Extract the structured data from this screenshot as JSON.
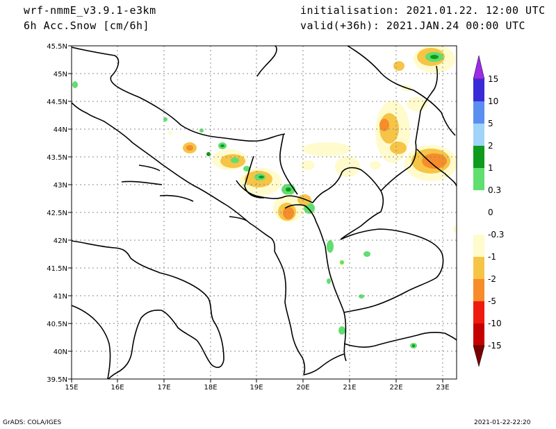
{
  "header": {
    "model": "wrf-nmmE_v3.9.1-e3km",
    "variable": "6h Acc.Snow [cm/6h]",
    "init": "initialisation: 2021.01.22.  12:00 UTC",
    "valid": "valid(+36h): 2021.JAN.24 00:00 UTC"
  },
  "axes": {
    "lat_labels": [
      "45.5N",
      "45N",
      "44.5N",
      "44N",
      "43.5N",
      "43N",
      "42.5N",
      "42N",
      "41.5N",
      "41N",
      "40.5N",
      "40N",
      "39.5N"
    ],
    "lon_labels": [
      "15E",
      "16E",
      "17E",
      "18E",
      "19E",
      "20E",
      "21E",
      "22E",
      "23E"
    ]
  },
  "colorbar": {
    "labels": [
      "15",
      "10",
      "5",
      "2",
      "1",
      "0.3",
      "0",
      "-0.3",
      "-1",
      "-2",
      "-5",
      "-10",
      "-15"
    ],
    "colors": [
      "#3a2bd6",
      "#5a8ef0",
      "#a0d4f8",
      "#0e9a1c",
      "#60de6e",
      "#ffffff",
      "#ffffff",
      "#fffbcc",
      "#f6c446",
      "#f68c2a",
      "#ee1a0f",
      "#c40000",
      "#9a0000"
    ],
    "top_color": "#9d2be8",
    "bottom_color": "#7a0000"
  },
  "footer": {
    "left": "GrADS: COLA/IGES",
    "right": "2021-01-22-22:20"
  }
}
